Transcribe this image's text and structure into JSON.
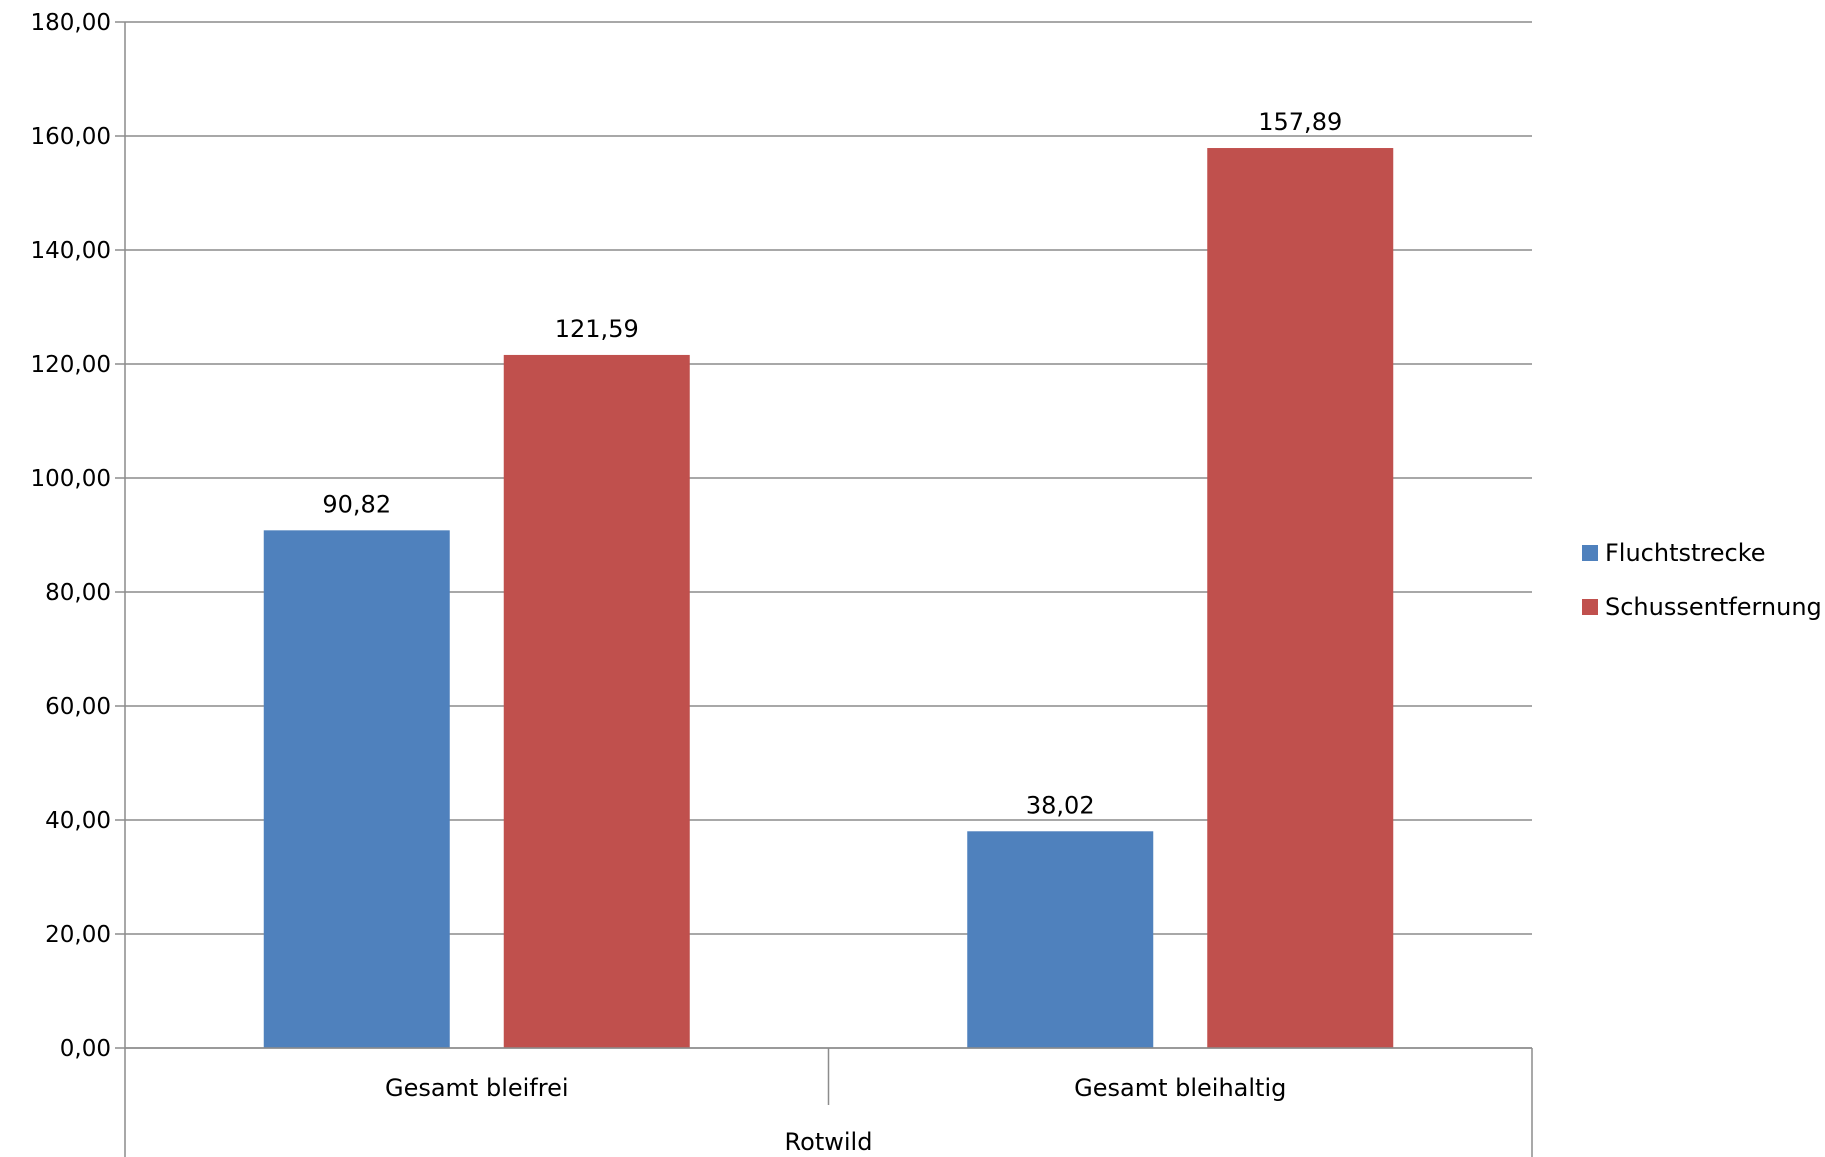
{
  "chart_data": {
    "type": "bar",
    "categories": [
      "Gesamt bleifrei",
      "Gesamt bleihaltig"
    ],
    "group_label": "Rotwild",
    "series": [
      {
        "name": "Fluchtstrecke",
        "color": "#4F81BD",
        "values": [
          90.82,
          38.02
        ],
        "labels": [
          "90,82",
          "38,02"
        ]
      },
      {
        "name": "Schussentfernung",
        "color": "#C0504D",
        "values": [
          121.59,
          157.89
        ],
        "labels": [
          "121,59",
          "157,89"
        ]
      }
    ],
    "y_ticks": [
      "0,00",
      "20,00",
      "40,00",
      "60,00",
      "80,00",
      "100,00",
      "120,00",
      "140,00",
      "160,00",
      "180,00"
    ],
    "ylim": [
      0,
      180
    ],
    "y_step": 20,
    "grid": true,
    "legend_position": "right",
    "title": "",
    "xlabel": "",
    "ylabel": ""
  }
}
